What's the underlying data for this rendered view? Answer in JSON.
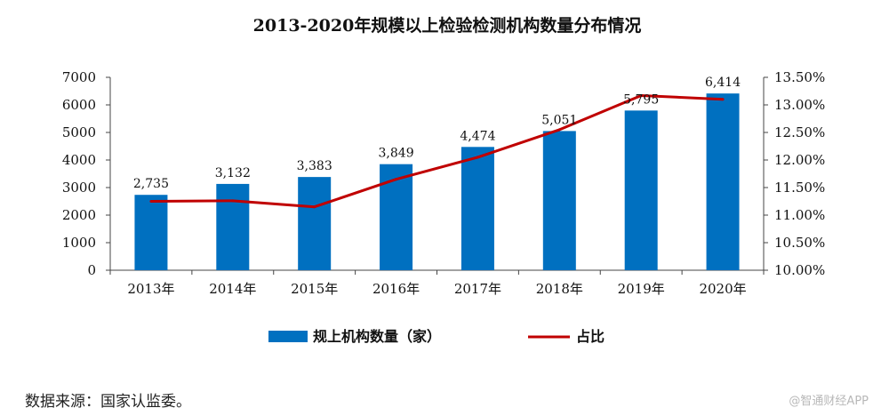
{
  "chart_data": {
    "type": "bar",
    "title": "2013-2020年规模以上检验检测机构数量分布情况",
    "categories": [
      "2013年",
      "2014年",
      "2015年",
      "2016年",
      "2017年",
      "2018年",
      "2019年",
      "2020年"
    ],
    "series": [
      {
        "name": "规上机构数量（家）",
        "type": "bar",
        "axis": "left",
        "color": "#0070c0",
        "values": [
          2735,
          3132,
          3383,
          3849,
          4474,
          5051,
          5795,
          6414
        ],
        "labels": [
          "2,735",
          "3,132",
          "3,383",
          "3,849",
          "4,474",
          "5,051",
          "5,795",
          "6,414"
        ]
      },
      {
        "name": "占比",
        "type": "line",
        "axis": "right",
        "color": "#c00000",
        "values": [
          11.25,
          11.26,
          11.15,
          11.65,
          12.05,
          12.55,
          13.17,
          13.1
        ]
      }
    ],
    "y_left": {
      "min": 0,
      "max": 7000,
      "ticks": [
        "0",
        "1000",
        "2000",
        "3000",
        "4000",
        "5000",
        "6000",
        "7000"
      ]
    },
    "y_right": {
      "min": 10.0,
      "max": 13.5,
      "ticks": [
        "10.00%",
        "10.50%",
        "11.00%",
        "11.50%",
        "12.00%",
        "12.50%",
        "13.00%",
        "13.50%"
      ]
    },
    "legend_position": "bottom",
    "grid": false
  },
  "source": "数据来源：国家认监委。",
  "watermark": "@智通财经APP"
}
